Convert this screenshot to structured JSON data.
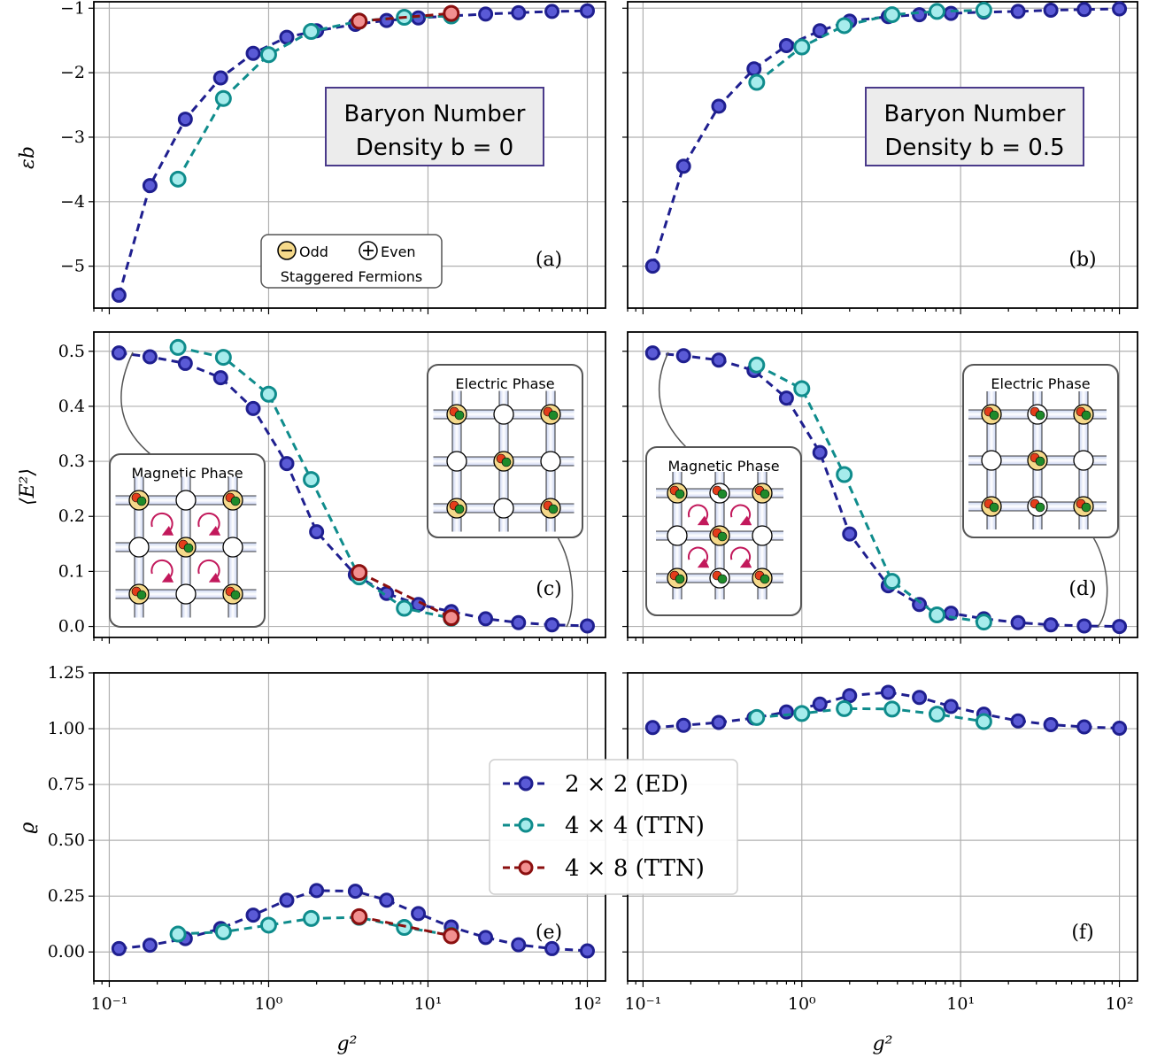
{
  "colors": {
    "ed_line": "#1f1f8f",
    "ed_fill": "#5a5ad6",
    "ttn44_line": "#0f8c8c",
    "ttn44_fill": "#a6ecec",
    "ttn48_line": "#8b0f0f",
    "ttn48_fill": "#f29090",
    "odd_site": "#f5d98a",
    "even_site": "#ffffff",
    "quark_red": "#e43d1a",
    "quark_green": "#1e8a2a",
    "plaquette_arrow": "#c2185b",
    "box_bg": "#ececec",
    "box_border_title": "#4a3a8a"
  },
  "panel_labels": [
    "(a)",
    "(b)",
    "(c)",
    "(d)",
    "(e)",
    "(f)"
  ],
  "title_boxes": [
    {
      "line1": "Baryon Number",
      "line2": "Density b = 0"
    },
    {
      "line1": "Baryon Number",
      "line2": "Density b = 0.5"
    }
  ],
  "fermion_legend": {
    "odd": "Odd",
    "even": "Even",
    "caption": "Staggered Fermions"
  },
  "phase_labels": {
    "magnetic": "Magnetic Phase",
    "electric": "Electric Phase"
  },
  "legend": {
    "ed": "2 × 2 (ED)",
    "ttn44": "4 × 4 (TTN)",
    "ttn48": "4 × 8 (TTN)"
  },
  "axes": {
    "xlabel": "g²",
    "ylabel_top": "εb",
    "ylabel_mid": "⟨E²⟩",
    "ylabel_bot": "ϱ",
    "xticks": [
      "10⁻¹",
      "10⁰",
      "10¹",
      "10²"
    ],
    "yticks_top": [
      "−1",
      "−2",
      "−3",
      "−4",
      "−5"
    ],
    "yticks_mid": [
      "0.5",
      "0.4",
      "0.3",
      "0.2",
      "0.1",
      "0.0"
    ],
    "yticks_bot": [
      "1.25",
      "1.00",
      "0.75",
      "0.50",
      "0.25",
      "0.00"
    ]
  },
  "chart_data": [
    {
      "type": "line",
      "panel": "(a)",
      "ylabel": "εb",
      "xlabel": "",
      "xscale": "log",
      "xlim": [
        0.08,
        130
      ],
      "ylim": [
        -5.65,
        -0.9
      ],
      "grid": true,
      "series": [
        {
          "name": "2 × 2 (ED)",
          "x": [
            0.115,
            0.18,
            0.3,
            0.5,
            0.8,
            1.3,
            2.0,
            3.5,
            5.5,
            8.7,
            14,
            23,
            37,
            60,
            100
          ],
          "y": [
            -5.45,
            -3.75,
            -2.72,
            -2.08,
            -1.7,
            -1.45,
            -1.35,
            -1.25,
            -1.19,
            -1.15,
            -1.12,
            -1.09,
            -1.07,
            -1.05,
            -1.04
          ]
        },
        {
          "name": "4 × 4 (TTN)",
          "x": [
            0.27,
            0.52,
            1.0,
            1.85,
            3.7,
            7.1,
            14
          ],
          "y": [
            -3.65,
            -2.4,
            -1.72,
            -1.36,
            -1.2,
            -1.14,
            -1.12
          ]
        },
        {
          "name": "4 × 8 (TTN)",
          "x": [
            3.7,
            14
          ],
          "y": [
            -1.2,
            -1.08
          ]
        }
      ]
    },
    {
      "type": "line",
      "panel": "(b)",
      "xscale": "log",
      "xlim": [
        0.08,
        130
      ],
      "ylim": [
        -5.65,
        -0.9
      ],
      "grid": true,
      "series": [
        {
          "name": "2 × 2 (ED)",
          "x": [
            0.115,
            0.18,
            0.3,
            0.5,
            0.8,
            1.3,
            2.0,
            3.5,
            5.5,
            8.7,
            14,
            23,
            37,
            60,
            100
          ],
          "y": [
            -5.0,
            -3.45,
            -2.52,
            -1.94,
            -1.58,
            -1.35,
            -1.2,
            -1.13,
            -1.1,
            -1.08,
            -1.06,
            -1.05,
            -1.03,
            -1.02,
            -1.01
          ]
        },
        {
          "name": "4 × 4 (TTN)",
          "x": [
            0.52,
            1.0,
            1.85,
            3.7,
            7.1,
            14
          ],
          "y": [
            -2.15,
            -1.6,
            -1.27,
            -1.1,
            -1.05,
            -1.03
          ]
        }
      ]
    },
    {
      "type": "line",
      "panel": "(c)",
      "ylabel": "⟨E²⟩",
      "xscale": "log",
      "xlim": [
        0.08,
        130
      ],
      "ylim": [
        -0.02,
        0.535
      ],
      "grid": true,
      "series": [
        {
          "name": "2 × 2 (ED)",
          "x": [
            0.115,
            0.18,
            0.3,
            0.5,
            0.8,
            1.3,
            2.0,
            3.5,
            5.5,
            8.7,
            14,
            23,
            37,
            60,
            100
          ],
          "y": [
            0.497,
            0.49,
            0.478,
            0.452,
            0.396,
            0.296,
            0.172,
            0.094,
            0.06,
            0.04,
            0.027,
            0.014,
            0.007,
            0.003,
            0.001
          ]
        },
        {
          "name": "4 × 4 (TTN)",
          "x": [
            0.27,
            0.52,
            1.0,
            1.85,
            3.7,
            7.1,
            14
          ],
          "y": [
            0.507,
            0.489,
            0.422,
            0.267,
            0.09,
            0.033,
            0.015
          ]
        },
        {
          "name": "4 × 8 (TTN)",
          "x": [
            3.7,
            14
          ],
          "y": [
            0.098,
            0.016
          ]
        }
      ]
    },
    {
      "type": "line",
      "panel": "(d)",
      "xscale": "log",
      "xlim": [
        0.08,
        130
      ],
      "ylim": [
        -0.02,
        0.535
      ],
      "grid": true,
      "series": [
        {
          "name": "2 × 2 (ED)",
          "x": [
            0.115,
            0.18,
            0.3,
            0.5,
            0.8,
            1.3,
            2.0,
            3.5,
            5.5,
            8.7,
            14,
            23,
            37,
            60,
            100
          ],
          "y": [
            0.497,
            0.492,
            0.484,
            0.465,
            0.415,
            0.316,
            0.168,
            0.074,
            0.04,
            0.024,
            0.014,
            0.007,
            0.003,
            0.001,
            0.0
          ]
        },
        {
          "name": "4 × 4 (TTN)",
          "x": [
            0.52,
            1.0,
            1.85,
            3.7,
            7.1,
            14
          ],
          "y": [
            0.475,
            0.432,
            0.276,
            0.082,
            0.021,
            0.008
          ]
        }
      ]
    },
    {
      "type": "line",
      "panel": "(e)",
      "ylabel": "ϱ",
      "xlabel": "g²",
      "xscale": "log",
      "xlim": [
        0.08,
        130
      ],
      "ylim": [
        -0.13,
        1.25
      ],
      "grid": true,
      "series": [
        {
          "name": "2 × 2 (ED)",
          "x": [
            0.115,
            0.18,
            0.3,
            0.5,
            0.8,
            1.3,
            2.0,
            3.5,
            5.5,
            8.7,
            14,
            23,
            37,
            60,
            100
          ],
          "y": [
            0.015,
            0.03,
            0.06,
            0.105,
            0.165,
            0.232,
            0.275,
            0.272,
            0.232,
            0.172,
            0.112,
            0.065,
            0.032,
            0.015,
            0.005
          ]
        },
        {
          "name": "4 × 4 (TTN)",
          "x": [
            0.27,
            0.52,
            1.0,
            1.85,
            3.7,
            7.1,
            14
          ],
          "y": [
            0.08,
            0.09,
            0.12,
            0.15,
            0.155,
            0.11,
            0.075
          ]
        },
        {
          "name": "4 × 8 (TTN)",
          "x": [
            3.7,
            14
          ],
          "y": [
            0.158,
            0.072
          ]
        }
      ]
    },
    {
      "type": "line",
      "panel": "(f)",
      "xlabel": "g²",
      "xscale": "log",
      "xlim": [
        0.08,
        130
      ],
      "ylim": [
        -0.13,
        1.25
      ],
      "grid": true,
      "series": [
        {
          "name": "2 × 2 (ED)",
          "x": [
            0.115,
            0.18,
            0.3,
            0.5,
            0.8,
            1.3,
            2.0,
            3.5,
            5.5,
            8.7,
            14,
            23,
            37,
            60,
            100
          ],
          "y": [
            1.005,
            1.015,
            1.028,
            1.048,
            1.075,
            1.11,
            1.148,
            1.163,
            1.14,
            1.1,
            1.065,
            1.035,
            1.018,
            1.008,
            1.002
          ]
        },
        {
          "name": "4 × 4 (TTN)",
          "x": [
            0.52,
            1.0,
            1.85,
            3.7,
            7.1,
            14
          ],
          "y": [
            1.05,
            1.068,
            1.09,
            1.088,
            1.065,
            1.032
          ]
        }
      ]
    }
  ]
}
